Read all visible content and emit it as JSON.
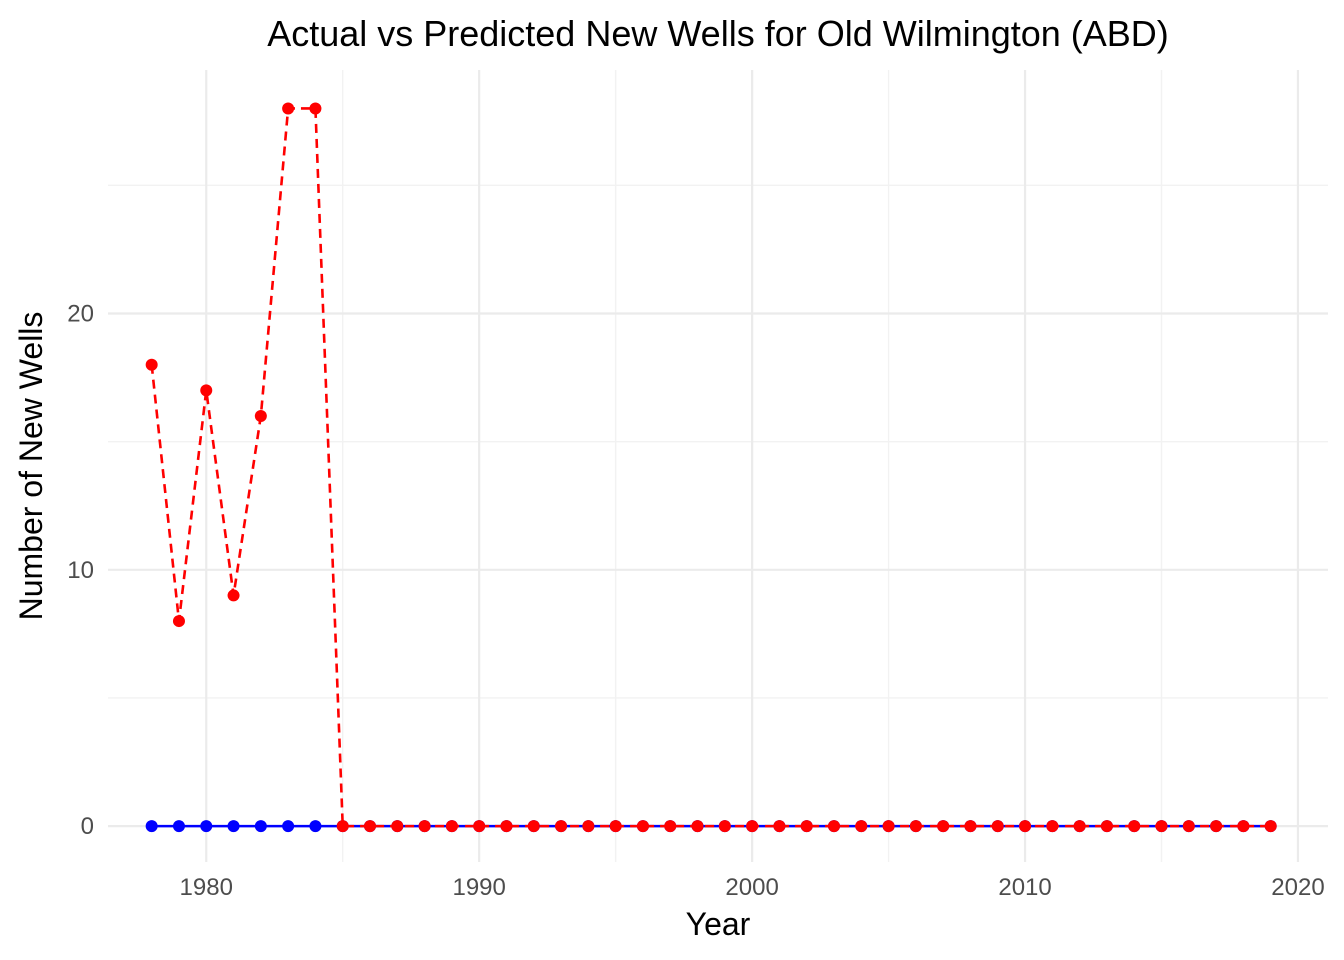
{
  "chart_data": {
    "type": "line",
    "title": "Actual vs Predicted New Wells for Old Wilmington (ABD)",
    "xlabel": "Year",
    "ylabel": "Number of New Wells",
    "xlim": [
      1976.4,
      2021.1
    ],
    "ylim": [
      -1.4,
      29.5
    ],
    "x_ticks": [
      1980,
      1990,
      2000,
      2010,
      2020
    ],
    "y_ticks": [
      0,
      10,
      20
    ],
    "x_minor_ticks": [
      1985,
      1995,
      2005,
      2015
    ],
    "y_minor_ticks": [
      5,
      15,
      25
    ],
    "grid": true,
    "legend": "none",
    "x": [
      1978,
      1979,
      1980,
      1981,
      1982,
      1983,
      1984,
      1985,
      1986,
      1987,
      1988,
      1989,
      1990,
      1991,
      1992,
      1993,
      1994,
      1995,
      1996,
      1997,
      1998,
      1999,
      2000,
      2001,
      2002,
      2003,
      2004,
      2005,
      2006,
      2007,
      2008,
      2009,
      2010,
      2011,
      2012,
      2013,
      2014,
      2015,
      2016,
      2017,
      2018,
      2019
    ],
    "series": [
      {
        "color": "#0000ff",
        "line_style": "solid",
        "values": [
          0,
          0,
          0,
          0,
          0,
          0,
          0,
          0,
          0,
          0,
          0,
          0,
          0,
          0,
          0,
          0,
          0,
          0,
          0,
          0,
          0,
          0,
          0,
          0,
          0,
          0,
          0,
          0,
          0,
          0,
          0,
          0,
          0,
          0,
          0,
          0,
          0,
          0,
          0,
          0,
          0,
          0
        ]
      },
      {
        "color": "#ff0000",
        "line_style": "dashed",
        "values": [
          18,
          8,
          17,
          9,
          16,
          28,
          28,
          0,
          0,
          0,
          0,
          0,
          0,
          0,
          0,
          0,
          0,
          0,
          0,
          0,
          0,
          0,
          0,
          0,
          0,
          0,
          0,
          0,
          0,
          0,
          0,
          0,
          0,
          0,
          0,
          0,
          0,
          0,
          0,
          0,
          0,
          0
        ]
      }
    ]
  }
}
